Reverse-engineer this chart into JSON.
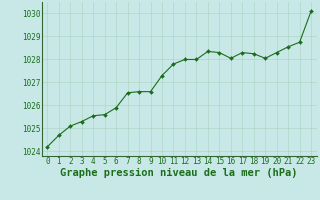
{
  "x": [
    0,
    1,
    2,
    3,
    4,
    5,
    6,
    7,
    8,
    9,
    10,
    11,
    12,
    13,
    14,
    15,
    16,
    17,
    18,
    19,
    20,
    21,
    22,
    23
  ],
  "y": [
    1024.2,
    1024.7,
    1025.1,
    1025.3,
    1025.55,
    1025.6,
    1025.9,
    1026.55,
    1026.6,
    1026.6,
    1027.3,
    1027.8,
    1028.0,
    1028.0,
    1028.35,
    1028.3,
    1028.05,
    1028.3,
    1028.25,
    1028.05,
    1028.3,
    1028.55,
    1028.75,
    1030.1
  ],
  "line_color": "#1a6e1a",
  "marker_color": "#1a6e1a",
  "bg_color": "#c8e8e8",
  "grid_color": "#b0d4c8",
  "xlabel": "Graphe pression niveau de la mer (hPa)",
  "xlabel_color": "#1a6e1a",
  "ylim": [
    1023.8,
    1030.5
  ],
  "yticks": [
    1024,
    1025,
    1026,
    1027,
    1028,
    1029,
    1030
  ],
  "xticks": [
    0,
    1,
    2,
    3,
    4,
    5,
    6,
    7,
    8,
    9,
    10,
    11,
    12,
    13,
    14,
    15,
    16,
    17,
    18,
    19,
    20,
    21,
    22,
    23
  ],
  "tick_label_color": "#1a6e1a",
  "tick_label_fontsize": 5.5,
  "xlabel_fontsize": 7.5,
  "xlabel_fontweight": "bold"
}
